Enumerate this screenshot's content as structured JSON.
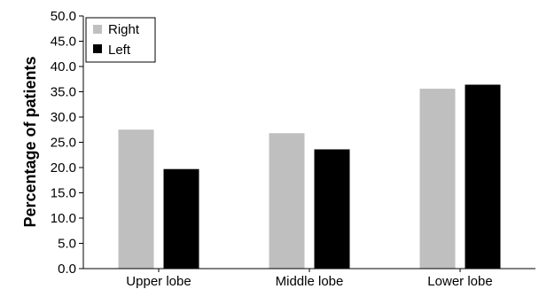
{
  "chart_data": {
    "type": "bar",
    "categories": [
      "Upper lobe",
      "Middle lobe",
      "Lower lobe"
    ],
    "series": [
      {
        "name": "Right",
        "color": "#bfbfbf",
        "values": [
          27.5,
          26.8,
          35.6
        ]
      },
      {
        "name": "Left",
        "color": "#000000",
        "values": [
          19.7,
          23.6,
          36.4
        ]
      }
    ],
    "title": "",
    "xlabel": "",
    "ylabel": "Percentage of patients",
    "ylim": [
      0,
      50
    ],
    "yticks": [
      "0.0",
      "5.0",
      "10.0",
      "15.0",
      "20.0",
      "25.0",
      "30.0",
      "35.0",
      "40.0",
      "45.0",
      "50.0"
    ],
    "grid": false,
    "legend_position": "top-left"
  }
}
